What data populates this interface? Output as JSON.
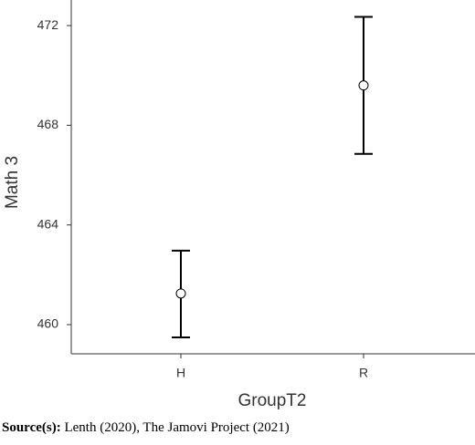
{
  "chart_data": {
    "type": "errorbar",
    "x_label": "GroupT2",
    "y_label": "Math 3",
    "categories": [
      "H",
      "R"
    ],
    "values": [
      461.25,
      469.6
    ],
    "lower": [
      459.49,
      466.85
    ],
    "upper": [
      462.97,
      472.35
    ],
    "color": "#000000",
    "ylim": [
      458.83,
      472.88
    ],
    "yticks": [
      460,
      464,
      468,
      472
    ],
    "grid": false
  },
  "caption": {
    "label": "Source(s):",
    "text": "Lenth (2020), The Jamovi Project (2021)"
  }
}
